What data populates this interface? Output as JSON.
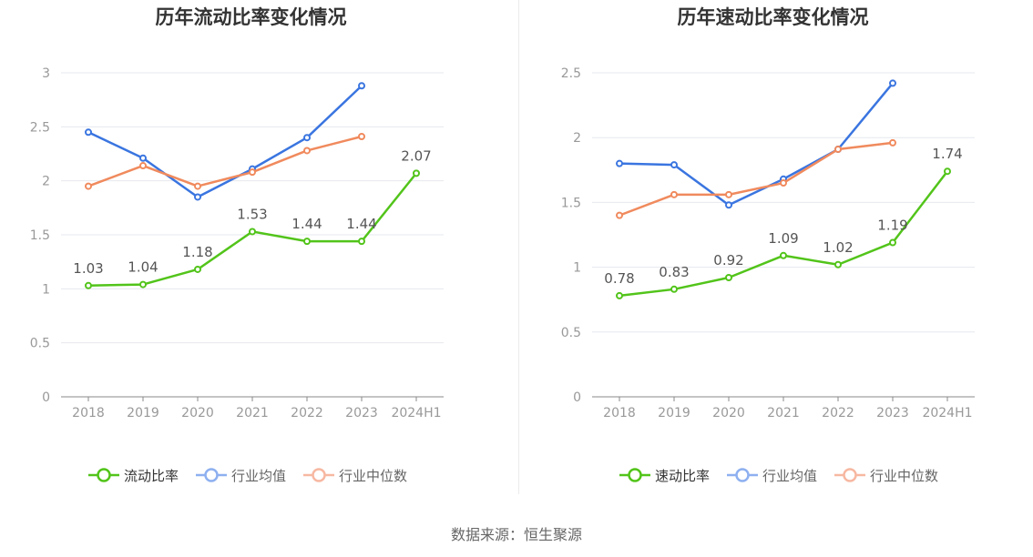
{
  "source_text": "数据来源：恒生聚源",
  "colors": {
    "company": "#52c41a",
    "industry_avg": "#3a75e0",
    "industry_median": "#f08a5d",
    "legend_avg": "#8eb0f0",
    "legend_median": "#f7b8a2",
    "grid": "#e6e8ee",
    "axis": "#888888",
    "tick_text": "#999999",
    "label_text": "#555555"
  },
  "chart_data": [
    {
      "type": "line",
      "title": "历年流动比率变化情况",
      "categories": [
        "2018",
        "2019",
        "2020",
        "2021",
        "2022",
        "2023",
        "2024H1"
      ],
      "ylim": [
        0,
        3
      ],
      "yticks": [
        "0",
        "0.5",
        "1",
        "1.5",
        "2",
        "2.5",
        "3"
      ],
      "grid": true,
      "legend_position": "bottom",
      "series": [
        {
          "name": "流动比率",
          "values": [
            1.03,
            1.04,
            1.18,
            1.53,
            1.44,
            1.44,
            2.07
          ],
          "labels": [
            "1.03",
            "1.04",
            "1.18",
            "1.53",
            "1.44",
            "1.44",
            "2.07"
          ],
          "color": "#52c41a"
        },
        {
          "name": "行业均值",
          "values": [
            2.45,
            2.21,
            1.85,
            2.11,
            2.4,
            2.88,
            null
          ],
          "color": "#3a75e0"
        },
        {
          "name": "行业中位数",
          "values": [
            1.95,
            2.14,
            1.95,
            2.08,
            2.28,
            2.41,
            null
          ],
          "color": "#f08a5d"
        }
      ]
    },
    {
      "type": "line",
      "title": "历年速动比率变化情况",
      "categories": [
        "2018",
        "2019",
        "2020",
        "2021",
        "2022",
        "2023",
        "2024H1"
      ],
      "ylim": [
        0,
        2.5
      ],
      "yticks": [
        "0",
        "0.5",
        "1",
        "1.5",
        "2",
        "2.5"
      ],
      "grid": true,
      "legend_position": "bottom",
      "series": [
        {
          "name": "速动比率",
          "values": [
            0.78,
            0.83,
            0.92,
            1.09,
            1.02,
            1.19,
            1.74
          ],
          "labels": [
            "0.78",
            "0.83",
            "0.92",
            "1.09",
            "1.02",
            "1.19",
            "1.74"
          ],
          "color": "#52c41a"
        },
        {
          "name": "行业均值",
          "values": [
            1.8,
            1.79,
            1.48,
            1.68,
            1.91,
            2.42,
            null
          ],
          "color": "#3a75e0"
        },
        {
          "name": "行业中位数",
          "values": [
            1.4,
            1.56,
            1.56,
            1.65,
            1.91,
            1.96,
            null
          ],
          "color": "#f08a5d"
        }
      ]
    }
  ]
}
